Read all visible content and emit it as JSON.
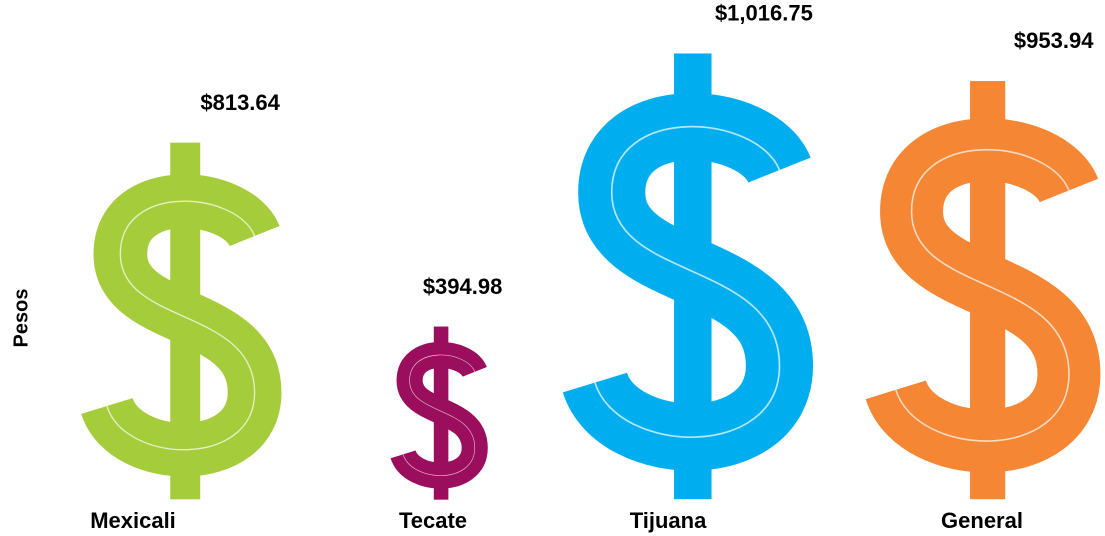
{
  "chart_data": {
    "type": "pictograph",
    "y_label": "Pesos",
    "categories": [
      "Mexicali",
      "Tecate",
      "Tijuana",
      "General"
    ],
    "values": [
      813.64,
      394.98,
      1016.75,
      953.94
    ],
    "value_labels": [
      "$813.64",
      "$394.98",
      "$1,016.75",
      "$953.94"
    ],
    "colors": [
      "#a5cd3b",
      "#9b0d5d",
      "#00aeef",
      "#f58634"
    ]
  }
}
